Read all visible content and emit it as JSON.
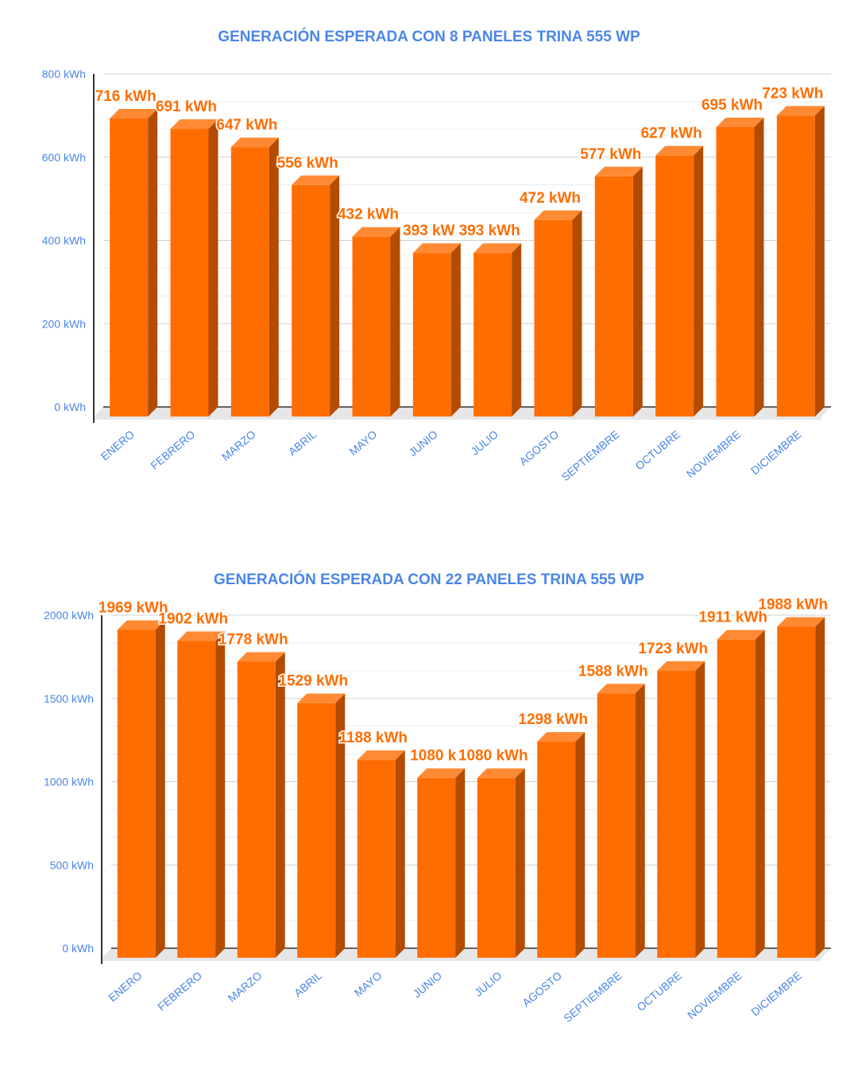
{
  "colors": {
    "bar_front": "#ff6d01",
    "bar_top": "#ff8a33",
    "bar_side": "#b34c00",
    "title": "#4a86e8",
    "label": "#ff6d01",
    "grid": "#d0d0d0",
    "floor": "#e6e6e6"
  },
  "chart_data": [
    {
      "type": "bar",
      "title": "GENERACIÓN ESPERADA CON 8 PANELES TRINA 555 WP",
      "categories": [
        "ENERO",
        "FEBRERO",
        "MARZO",
        "ABRIL",
        "MAYO",
        "JUNIO",
        "JULIO",
        "AGOSTO",
        "SEPTIEMBRE",
        "OCTUBRE",
        "NOVIEMBRE",
        "DICIEMBRE"
      ],
      "values": [
        716,
        691,
        647,
        556,
        432,
        393,
        393,
        472,
        577,
        627,
        695,
        723
      ],
      "data_labels": [
        "716 kWh",
        "691 kWh",
        "647 kWh",
        "556 kWh",
        "432 kWh",
        "393 kW",
        "393 kWh",
        "472 kWh",
        "577 kWh",
        "627 kWh",
        "695 kWh",
        "723 kWh"
      ],
      "ylim": [
        0,
        800
      ],
      "yticks": [
        0,
        200,
        400,
        600,
        800
      ],
      "ytick_labels": [
        "0 kWh",
        "200 kWh",
        "400 kWh",
        "600 kWh",
        "800 kWh"
      ],
      "grid": true,
      "legend": "none"
    },
    {
      "type": "bar",
      "title": "GENERACIÓN ESPERADA CON 22 PANELES TRINA 555 WP",
      "categories": [
        "ENERO",
        "FEBRERO",
        "MARZO",
        "ABRIL",
        "MAYO",
        "JUNIO",
        "JULIO",
        "AGOSTO",
        "SEPTIEMBRE",
        "OCTUBRE",
        "NOVIEMBRE",
        "DICIEMBRE"
      ],
      "values": [
        1969,
        1902,
        1778,
        1529,
        1188,
        1080,
        1080,
        1298,
        1588,
        1723,
        1911,
        1988
      ],
      "data_labels": [
        "1969 kWh",
        "1902 kWh",
        "1778 kWh",
        "1529 kWh",
        "1188 kWh",
        "1080 k",
        "1080 kWh",
        "1298 kWh",
        "1588 kWh",
        "1723 kWh",
        "1911 kWh",
        "1988 kWh"
      ],
      "ylim": [
        0,
        2000
      ],
      "yticks": [
        0,
        500,
        1000,
        1500,
        2000
      ],
      "ytick_labels": [
        "0 kWh",
        "500 kWh",
        "1000 kWh",
        "1500 kWh",
        "2000 kWh"
      ],
      "grid": true,
      "legend": "none"
    }
  ]
}
